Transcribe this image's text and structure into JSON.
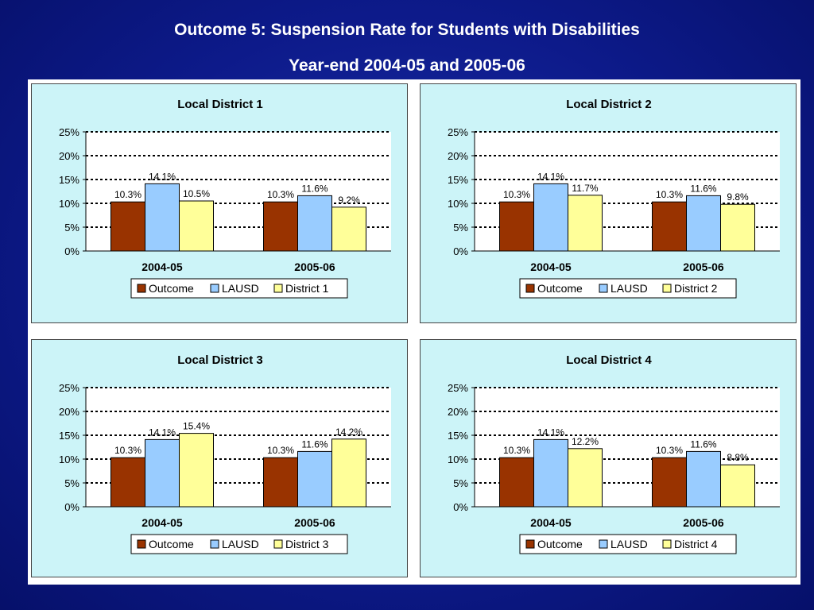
{
  "slide": {
    "title_line1": "Outcome 5: Suspension Rate for Students with Disabilities",
    "title_line2": "Year-end 2004-05 and 2005-06"
  },
  "colors": {
    "outcome": "#993300",
    "lausd": "#99ccff",
    "district": "#ffff99",
    "panel_bg": "#ccf4f8",
    "plot_bg": "#ffffff"
  },
  "chart_data": [
    {
      "type": "bar",
      "title": "Local District 1",
      "categories": [
        "2004-05",
        "2005-06"
      ],
      "series": [
        {
          "name": "Outcome",
          "values": [
            10.3,
            10.3
          ],
          "labels": [
            "10.3%",
            "10.3%"
          ]
        },
        {
          "name": "LAUSD",
          "values": [
            14.1,
            11.6
          ],
          "labels": [
            "14.1%",
            "11.6%"
          ]
        },
        {
          "name": "District 1",
          "values": [
            10.5,
            9.2
          ],
          "labels": [
            "10.5%",
            "9.2%"
          ]
        }
      ],
      "yticks": [
        "0%",
        "5%",
        "10%",
        "15%",
        "20%",
        "25%"
      ],
      "ylim": [
        0,
        25
      ],
      "grid": "dotted horizontal",
      "legend": "bottom"
    },
    {
      "type": "bar",
      "title": "Local District 2",
      "categories": [
        "2004-05",
        "2005-06"
      ],
      "series": [
        {
          "name": "Outcome",
          "values": [
            10.3,
            10.3
          ],
          "labels": [
            "10.3%",
            "10.3%"
          ]
        },
        {
          "name": "LAUSD",
          "values": [
            14.1,
            11.6
          ],
          "labels": [
            "14.1%",
            "11.6%"
          ]
        },
        {
          "name": "District 2",
          "values": [
            11.7,
            9.8
          ],
          "labels": [
            "11.7%",
            "9.8%"
          ]
        }
      ],
      "yticks": [
        "0%",
        "5%",
        "10%",
        "15%",
        "20%",
        "25%"
      ],
      "ylim": [
        0,
        25
      ],
      "grid": "dotted horizontal",
      "legend": "bottom"
    },
    {
      "type": "bar",
      "title": "Local District 3",
      "categories": [
        "2004-05",
        "2005-06"
      ],
      "series": [
        {
          "name": "Outcome",
          "values": [
            10.3,
            10.3
          ],
          "labels": [
            "10.3%",
            "10.3%"
          ]
        },
        {
          "name": "LAUSD",
          "values": [
            14.1,
            11.6
          ],
          "labels": [
            "14.1%",
            "11.6%"
          ]
        },
        {
          "name": "District 3",
          "values": [
            15.4,
            14.2
          ],
          "labels": [
            "15.4%",
            "14.2%"
          ]
        }
      ],
      "yticks": [
        "0%",
        "5%",
        "10%",
        "15%",
        "20%",
        "25%"
      ],
      "ylim": [
        0,
        25
      ],
      "grid": "dotted horizontal",
      "legend": "bottom"
    },
    {
      "type": "bar",
      "title": "Local District 4",
      "categories": [
        "2004-05",
        "2005-06"
      ],
      "series": [
        {
          "name": "Outcome",
          "values": [
            10.3,
            10.3
          ],
          "labels": [
            "10.3%",
            "10.3%"
          ]
        },
        {
          "name": "LAUSD",
          "values": [
            14.1,
            11.6
          ],
          "labels": [
            "14.1%",
            "11.6%"
          ]
        },
        {
          "name": "District 4",
          "values": [
            12.2,
            8.8
          ],
          "labels": [
            "12.2%",
            "8.8%"
          ]
        }
      ],
      "yticks": [
        "0%",
        "5%",
        "10%",
        "15%",
        "20%",
        "25%"
      ],
      "ylim": [
        0,
        25
      ],
      "grid": "dotted horizontal",
      "legend": "bottom"
    }
  ]
}
